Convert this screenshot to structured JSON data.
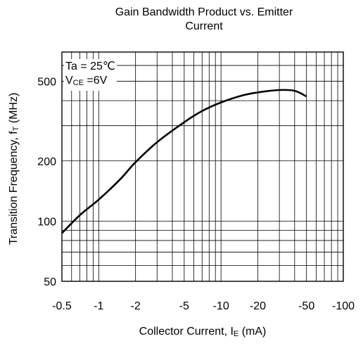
{
  "chart_data": {
    "type": "line",
    "title_line1": "Gain Bandwidth Product vs. Emitter",
    "title_line2": "Current",
    "xlabel_main": "Collector Current, I",
    "xlabel_sub": "E",
    "xlabel_unit": " (mA)",
    "ylabel_main": "Transition Frequency, f",
    "ylabel_sub": "T",
    "ylabel_unit": " (MHz)",
    "x_scale": "log",
    "y_scale": "log",
    "x_direction": "negative (magnitude increases to the right)",
    "xlim": [
      -0.5,
      -100
    ],
    "ylim": [
      50,
      700
    ],
    "grid": true,
    "x_ticks": [
      -0.5,
      -1,
      -2,
      -5,
      -10,
      -20,
      -50,
      -100
    ],
    "x_tick_labels": [
      "-0.5",
      "-1",
      "-2",
      "-5",
      "-10",
      "-20",
      "-50",
      "-100"
    ],
    "y_ticks": [
      50,
      100,
      200,
      500
    ],
    "y_tick_labels": [
      "50",
      "100",
      "200",
      "500"
    ],
    "annotation_ta": "Ta = 25℃",
    "annotation_v_main": "V",
    "annotation_v_sub": "CE",
    "annotation_v_rest": " =6V",
    "series": [
      {
        "x": [
          -0.5,
          -0.7,
          -1,
          -1.5,
          -2,
          -3,
          -5,
          -7,
          -10,
          -15,
          -20,
          -30,
          -40,
          -50
        ],
        "y": [
          87,
          107,
          128,
          162,
          197,
          248,
          312,
          355,
          392,
          425,
          440,
          452,
          448,
          420
        ]
      }
    ],
    "colors": {
      "line": "#000000",
      "grid": "#000000",
      "background": "#ffffff"
    }
  }
}
